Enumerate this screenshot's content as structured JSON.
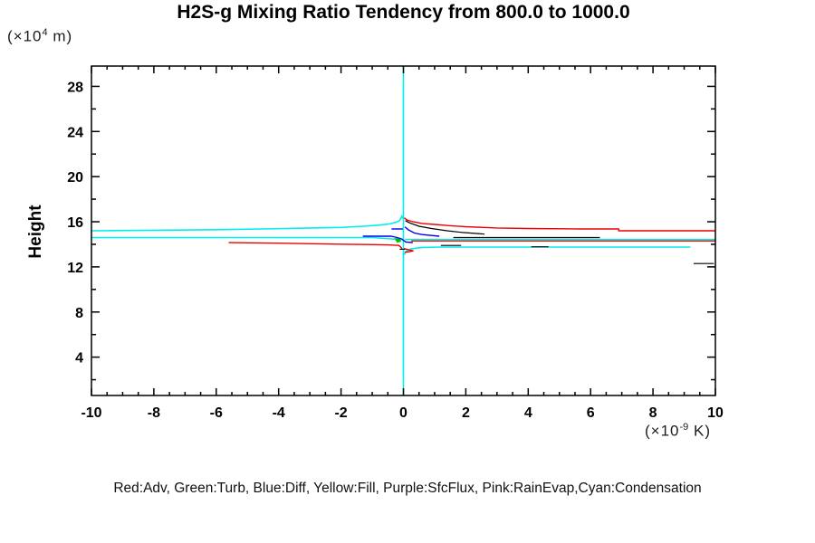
{
  "title": "H2S-g Mixing Ratio Tendency from 800.0 to 1000.0",
  "y_axis_label": "Height",
  "y_unit": {
    "prefix": "(×10",
    "exp": "4",
    "suffix": " m)"
  },
  "x_unit": {
    "prefix": "(×10",
    "exp": "-9",
    "suffix": " K)"
  },
  "legend": "Red:Adv, Green:Turb, Blue:Diff, Yellow:Fill, Purple:SfcFlux, Pink:RainEvap,Cyan:Condensation",
  "chart_data": {
    "type": "line",
    "title": "H2S-g Mixing Ratio Tendency from 800.0 to 1000.0",
    "xlabel": "(x10^-9 K)",
    "ylabel": "Height (x10^4 m)",
    "xlim": [
      -10,
      10
    ],
    "ylim": [
      0.6,
      29.8
    ],
    "grid": false,
    "legend_position": "bottom-caption",
    "x_major_ticks": [
      -10,
      -8,
      -6,
      -4,
      -2,
      0,
      2,
      4,
      6,
      8,
      10
    ],
    "x_tick_labels": [
      "-10",
      "-8",
      "-6",
      "-4",
      "-2",
      "0",
      "2",
      "4",
      "6",
      "8",
      "10"
    ],
    "x_minor_step": 0.5,
    "y_major_ticks": [
      4,
      8,
      12,
      16,
      20,
      24,
      28
    ],
    "y_tick_labels": [
      "4",
      "8",
      "12",
      "16",
      "20",
      "24",
      "28"
    ],
    "y_minor_step": 2,
    "zero_reference_line": {
      "x": 0,
      "color": "#00ffff"
    },
    "series": [
      {
        "name": "Condensation",
        "color": "#00eeee",
        "width": 1.6,
        "branches": [
          [
            [
              0,
              0.6
            ],
            [
              0,
              29.8
            ]
          ],
          [
            [
              -10,
              15.2
            ],
            [
              -8,
              15.25
            ],
            [
              -6,
              15.3
            ],
            [
              -4.5,
              15.36
            ],
            [
              -3,
              15.45
            ],
            [
              -2,
              15.5
            ],
            [
              -1.3,
              15.6
            ],
            [
              -0.8,
              15.7
            ],
            [
              -0.45,
              15.8
            ],
            [
              -0.25,
              15.95
            ],
            [
              -0.12,
              16.1
            ],
            [
              -0.05,
              16.5
            ],
            [
              -0.02,
              16.3
            ]
          ],
          [
            [
              -10,
              14.6
            ],
            [
              -1.0,
              14.6
            ],
            [
              -0.6,
              14.52
            ],
            [
              -0.3,
              14.46
            ],
            [
              -0.05,
              14.42
            ]
          ],
          [
            [
              0.05,
              14.44
            ],
            [
              10,
              14.44
            ]
          ],
          [
            [
              0.02,
              13.08
            ],
            [
              0.1,
              13.4
            ],
            [
              0.25,
              13.6
            ],
            [
              0.6,
              13.72
            ],
            [
              1.2,
              13.76
            ],
            [
              9.2,
              13.76
            ]
          ]
        ]
      },
      {
        "name": "Diff",
        "color": "#0000ee",
        "width": 1.4,
        "branches": [
          [
            [
              -1.3,
              14.72
            ],
            [
              -0.4,
              14.72
            ],
            [
              -0.2,
              14.6
            ],
            [
              -0.06,
              14.48
            ],
            [
              0.0,
              14.35
            ],
            [
              0.08,
              14.2
            ],
            [
              0.3,
              14.16
            ]
          ],
          [
            [
              -0.38,
              15.36
            ],
            [
              -0.02,
              15.36
            ]
          ],
          [
            [
              0.05,
              15.55
            ],
            [
              0.15,
              15.3
            ],
            [
              0.35,
              15.0
            ],
            [
              0.6,
              14.86
            ],
            [
              0.9,
              14.78
            ],
            [
              1.15,
              14.72
            ]
          ]
        ]
      },
      {
        "name": "Turb",
        "color": "#00bb00",
        "width": 1.4,
        "branches": [
          [
            [
              -0.28,
              14.5
            ],
            [
              -0.1,
              14.42
            ],
            [
              -0.25,
              14.34
            ],
            [
              -0.08,
              14.28
            ],
            [
              -0.22,
              14.2
            ]
          ]
        ]
      },
      {
        "name": "Adv",
        "color": "#ee0000",
        "width": 1.4,
        "branches": [
          [
            [
              -5.6,
              14.16
            ],
            [
              -4,
              14.1
            ],
            [
              -2.5,
              14.03
            ],
            [
              -1.2,
              13.98
            ],
            [
              -0.5,
              13.95
            ],
            [
              -0.15,
              13.9
            ],
            [
              -0.08,
              13.75
            ],
            [
              -0.05,
              13.6
            ]
          ],
          [
            [
              0.02,
              13.62
            ],
            [
              0.18,
              13.5
            ],
            [
              0.32,
              13.42
            ],
            [
              0.18,
              13.34
            ],
            [
              0.04,
              13.3
            ]
          ],
          [
            [
              0.03,
              16.35
            ],
            [
              0.12,
              16.15
            ],
            [
              0.3,
              16.0
            ],
            [
              0.6,
              15.85
            ],
            [
              1.0,
              15.76
            ],
            [
              1.5,
              15.65
            ],
            [
              2.0,
              15.56
            ],
            [
              3.0,
              15.45
            ],
            [
              4.0,
              15.4
            ],
            [
              5.6,
              15.36
            ],
            [
              6.9,
              15.36
            ],
            [
              6.9,
              15.2
            ],
            [
              10,
              15.2
            ]
          ],
          [
            [
              0.25,
              14.3
            ],
            [
              10,
              14.3
            ]
          ]
        ]
      },
      {
        "name": "unlabeled-black",
        "color": "#000000",
        "width": 1.2,
        "branches": [
          [
            [
              0.06,
              16.1
            ],
            [
              0.2,
              15.9
            ],
            [
              0.5,
              15.6
            ],
            [
              0.9,
              15.4
            ],
            [
              1.4,
              15.2
            ],
            [
              1.9,
              15.05
            ],
            [
              2.4,
              14.95
            ],
            [
              2.6,
              14.9
            ]
          ],
          [
            [
              1.6,
              14.6
            ],
            [
              6.3,
              14.6
            ]
          ],
          [
            [
              1.2,
              13.9
            ],
            [
              1.85,
              13.9
            ]
          ],
          [
            [
              4.1,
              13.78
            ],
            [
              4.65,
              13.78
            ]
          ],
          [
            [
              9.3,
              12.3
            ],
            [
              9.95,
              12.3
            ]
          ],
          [
            [
              -0.12,
              13.56
            ],
            [
              0.05,
              13.56
            ]
          ]
        ]
      },
      {
        "name": "Fill",
        "color": "#ffff00",
        "width": 1.4,
        "branches": []
      },
      {
        "name": "SfcFlux",
        "color": "#9900cc",
        "width": 1.4,
        "branches": []
      },
      {
        "name": "RainEvap",
        "color": "#ff88cc",
        "width": 1.4,
        "branches": []
      }
    ]
  }
}
